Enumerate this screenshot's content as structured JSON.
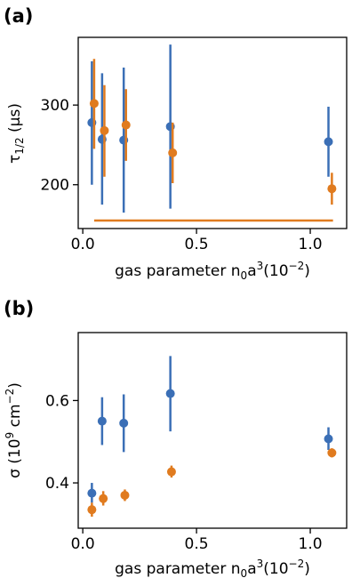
{
  "colors": {
    "blue": "#3b6fb6",
    "orange": "#e07b1f"
  },
  "chart_data": [
    {
      "type": "scatter",
      "panel_label": "(a)",
      "xlabel_parts": [
        "gas parameter n",
        "0",
        "a",
        "3",
        "(10",
        "−2",
        ")"
      ],
      "ylabel_parts": [
        "τ",
        "1/2",
        " (μs)"
      ],
      "xlim": [
        -0.02,
        1.16
      ],
      "ylim": [
        145,
        385
      ],
      "xticks": [
        0.0,
        0.5,
        1.0
      ],
      "xtick_labels": [
        "0.0",
        "0.5",
        "1.0"
      ],
      "yticks": [
        200,
        300
      ],
      "ytick_labels": [
        "200",
        "300"
      ],
      "grid": false,
      "series": [
        {
          "color": "blue",
          "points": [
            {
              "x": 0.04,
              "y": 278,
              "err_low": 200,
              "err_high": 355
            },
            {
              "x": 0.085,
              "y": 257,
              "err_low": 175,
              "err_high": 340
            },
            {
              "x": 0.18,
              "y": 256,
              "err_low": 165,
              "err_high": 347
            },
            {
              "x": 0.385,
              "y": 273,
              "err_low": 170,
              "err_high": 376
            },
            {
              "x": 1.08,
              "y": 254,
              "err_low": 210,
              "err_high": 298
            }
          ]
        },
        {
          "color": "orange",
          "points": [
            {
              "x": 0.05,
              "y": 302,
              "err_low": 245,
              "err_high": 358
            },
            {
              "x": 0.095,
              "y": 268,
              "err_low": 210,
              "err_high": 325
            },
            {
              "x": 0.19,
              "y": 275,
              "err_low": 230,
              "err_high": 320
            },
            {
              "x": 0.395,
              "y": 240,
              "err_low": 202,
              "err_high": 278
            },
            {
              "x": 1.095,
              "y": 195,
              "err_low": 175,
              "err_high": 215
            }
          ]
        }
      ],
      "hlines": [
        {
          "y": 155,
          "x_from": 0.05,
          "x_to": 1.1,
          "color": "orange"
        }
      ]
    },
    {
      "type": "scatter",
      "panel_label": "(b)",
      "xlabel_parts": [
        "gas parameter n",
        "0",
        "a",
        "3",
        "(10",
        "−2",
        ")"
      ],
      "ylabel_parts": [
        "σ (10",
        "9",
        " cm",
        "−2",
        ")"
      ],
      "xlim": [
        -0.02,
        1.16
      ],
      "ylim": [
        0.29,
        0.765
      ],
      "xticks": [
        0.0,
        0.5,
        1.0
      ],
      "xtick_labels": [
        "0.0",
        "0.5",
        "1.0"
      ],
      "yticks": [
        0.4,
        0.6
      ],
      "ytick_labels": [
        "0.4",
        "0.6"
      ],
      "grid": false,
      "series": [
        {
          "color": "blue",
          "points": [
            {
              "x": 0.04,
              "y": 0.375,
              "err_low": 0.352,
              "err_high": 0.4
            },
            {
              "x": 0.085,
              "y": 0.55,
              "err_low": 0.492,
              "err_high": 0.608
            },
            {
              "x": 0.18,
              "y": 0.545,
              "err_low": 0.475,
              "err_high": 0.615
            },
            {
              "x": 0.385,
              "y": 0.617,
              "err_low": 0.525,
              "err_high": 0.708
            },
            {
              "x": 1.08,
              "y": 0.507,
              "err_low": 0.48,
              "err_high": 0.535
            }
          ]
        },
        {
          "color": "orange",
          "points": [
            {
              "x": 0.04,
              "y": 0.335,
              "err_low": 0.318,
              "err_high": 0.352
            },
            {
              "x": 0.09,
              "y": 0.362,
              "err_low": 0.345,
              "err_high": 0.38
            },
            {
              "x": 0.185,
              "y": 0.37,
              "err_low": 0.356,
              "err_high": 0.384
            },
            {
              "x": 0.39,
              "y": 0.427,
              "err_low": 0.413,
              "err_high": 0.442
            },
            {
              "x": 1.095,
              "y": 0.473,
              "err_low": 0.462,
              "err_high": 0.484
            }
          ]
        }
      ]
    }
  ]
}
